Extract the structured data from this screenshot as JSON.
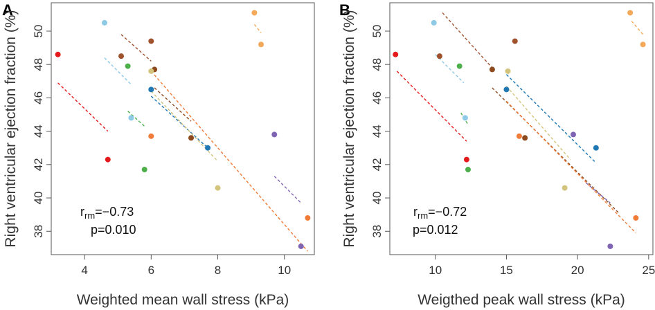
{
  "chart_data": [
    {
      "type": "scatter",
      "panel_label": "A",
      "xlabel": "Weighted mean wall stress (kPa)",
      "ylabel": "Right ventricular ejection fraction (%)",
      "xlim": [
        3.0,
        10.9
      ],
      "ylim": [
        36.6,
        51.7
      ],
      "xticks": [
        4,
        6,
        8,
        10
      ],
      "yticks": [
        38,
        40,
        42,
        44,
        46,
        48,
        50
      ],
      "stats": {
        "r_prefix": "r",
        "r_sub": "rm",
        "r_value": "=−0.73",
        "p_text": "p=0.010"
      },
      "series": [
        {
          "name": "red",
          "color": "#e41a1c",
          "points": [
            [
              3.2,
              48.6
            ],
            [
              4.7,
              42.3
            ]
          ],
          "fit": [
            [
              3.2,
              46.9
            ],
            [
              4.7,
              44.0
            ]
          ]
        },
        {
          "name": "light blue",
          "color": "#8ecae6",
          "points": [
            [
              4.6,
              50.5
            ],
            [
              5.4,
              44.8
            ]
          ],
          "fit": [
            [
              4.6,
              48.4
            ],
            [
              5.4,
              46.8
            ]
          ]
        },
        {
          "name": "olive brown",
          "color": "#a0522d",
          "points": [
            [
              5.1,
              48.5
            ],
            [
              6.0,
              49.4
            ]
          ],
          "fit": [
            [
              5.1,
              49.8
            ],
            [
              6.0,
              48.2
            ]
          ]
        },
        {
          "name": "green",
          "color": "#4daf4a",
          "points": [
            [
              5.3,
              47.9
            ],
            [
              5.8,
              41.7
            ]
          ],
          "fit": [
            [
              5.3,
              45.2
            ],
            [
              5.8,
              44.3
            ]
          ]
        },
        {
          "name": "steel blue",
          "color": "#1f78b4",
          "points": [
            [
              6.0,
              46.5
            ],
            [
              7.7,
              43.0
            ]
          ],
          "fit": [
            [
              6.0,
              46.1
            ],
            [
              7.7,
              43.0
            ]
          ]
        },
        {
          "name": "brown",
          "color": "#8c4a1e",
          "points": [
            [
              6.1,
              47.7
            ],
            [
              7.2,
              43.6
            ]
          ],
          "fit": [
            [
              6.1,
              46.6
            ],
            [
              7.2,
              44.6
            ]
          ]
        },
        {
          "name": "orange",
          "color": "#f07c3a",
          "points": [
            [
              6.0,
              43.7
            ],
            [
              10.7,
              38.8
            ]
          ],
          "fit": [
            [
              6.0,
              47.6
            ],
            [
              10.7,
              36.8
            ]
          ]
        },
        {
          "name": "khaki",
          "color": "#d2c47c",
          "points": [
            [
              6.0,
              47.6
            ],
            [
              8.0,
              40.6
            ]
          ],
          "fit": [
            [
              6.0,
              46.4
            ],
            [
              8.0,
              42.2
            ]
          ]
        },
        {
          "name": "purple",
          "color": "#8064b4",
          "points": [
            [
              9.7,
              43.8
            ],
            [
              10.5,
              37.1
            ]
          ],
          "fit": [
            [
              9.7,
              41.3
            ],
            [
              10.5,
              39.7
            ]
          ]
        },
        {
          "name": "light orange",
          "color": "#f4a95a",
          "points": [
            [
              9.1,
              51.1
            ],
            [
              9.3,
              49.2
            ]
          ],
          "fit": [
            [
              9.1,
              50.4
            ],
            [
              9.3,
              49.9
            ]
          ]
        }
      ]
    },
    {
      "type": "scatter",
      "panel_label": "B",
      "xlabel": "Weigthed peak wall stress (kPa)",
      "ylabel": "Right ventricular ejection fraction (%)",
      "xlim": [
        6.8,
        25.3
      ],
      "ylim": [
        36.6,
        51.7
      ],
      "xticks": [
        10,
        15,
        20,
        25
      ],
      "yticks": [
        38,
        40,
        42,
        44,
        46,
        48,
        50
      ],
      "stats": {
        "r_prefix": "r",
        "r_sub": "rm",
        "r_value": "=−0.72",
        "p_text": "p=0.012"
      },
      "series": [
        {
          "name": "red",
          "color": "#e41a1c",
          "points": [
            [
              7.2,
              48.6
            ],
            [
              12.2,
              42.3
            ]
          ],
          "fit": [
            [
              7.3,
              47.6
            ],
            [
              12.2,
              43.4
            ]
          ]
        },
        {
          "name": "light blue",
          "color": "#8ecae6",
          "points": [
            [
              9.9,
              50.5
            ],
            [
              12.1,
              44.8
            ]
          ],
          "fit": [
            [
              10.0,
              48.6
            ],
            [
              12.0,
              46.9
            ]
          ]
        },
        {
          "name": "olive brown",
          "color": "#a0522d",
          "points": [
            [
              10.3,
              48.5
            ],
            [
              15.6,
              49.4
            ]
          ],
          "fit": [
            [
              10.5,
              51.1
            ],
            [
              14.0,
              47.8
            ]
          ]
        },
        {
          "name": "green",
          "color": "#4daf4a",
          "points": [
            [
              11.7,
              47.9
            ],
            [
              12.3,
              41.7
            ]
          ],
          "fit": [
            [
              11.8,
              45.1
            ],
            [
              12.3,
              44.4
            ]
          ]
        },
        {
          "name": "steel blue",
          "color": "#1f78b4",
          "points": [
            [
              15.0,
              46.5
            ],
            [
              21.3,
              43.0
            ]
          ],
          "fit": [
            [
              15.0,
              47.4
            ],
            [
              21.3,
              42.1
            ]
          ]
        },
        {
          "name": "brown",
          "color": "#8c4a1e",
          "points": [
            [
              14.0,
              47.7
            ],
            [
              16.3,
              43.6
            ]
          ],
          "fit": [
            [
              14.0,
              46.6
            ],
            [
              22.9,
              39.1
            ]
          ]
        },
        {
          "name": "orange",
          "color": "#f07c3a",
          "points": [
            [
              15.9,
              43.7
            ],
            [
              24.1,
              38.8
            ]
          ],
          "fit": [
            [
              15.0,
              45.8
            ],
            [
              24.1,
              37.9
            ]
          ]
        },
        {
          "name": "khaki",
          "color": "#d2c47c",
          "points": [
            [
              15.1,
              47.6
            ],
            [
              19.1,
              40.6
            ]
          ],
          "fit": [
            [
              15.0,
              46.7
            ],
            [
              19.5,
              42.3
            ]
          ]
        },
        {
          "name": "purple",
          "color": "#8064b4",
          "points": [
            [
              19.7,
              43.8
            ],
            [
              22.3,
              37.1
            ]
          ],
          "fit": [
            [
              20.6,
              40.9
            ],
            [
              22.3,
              39.7
            ]
          ]
        },
        {
          "name": "light orange",
          "color": "#f4a95a",
          "points": [
            [
              23.7,
              51.1
            ],
            [
              24.6,
              49.2
            ]
          ],
          "fit": [
            [
              23.8,
              50.6
            ],
            [
              24.6,
              49.8
            ]
          ]
        }
      ]
    }
  ]
}
